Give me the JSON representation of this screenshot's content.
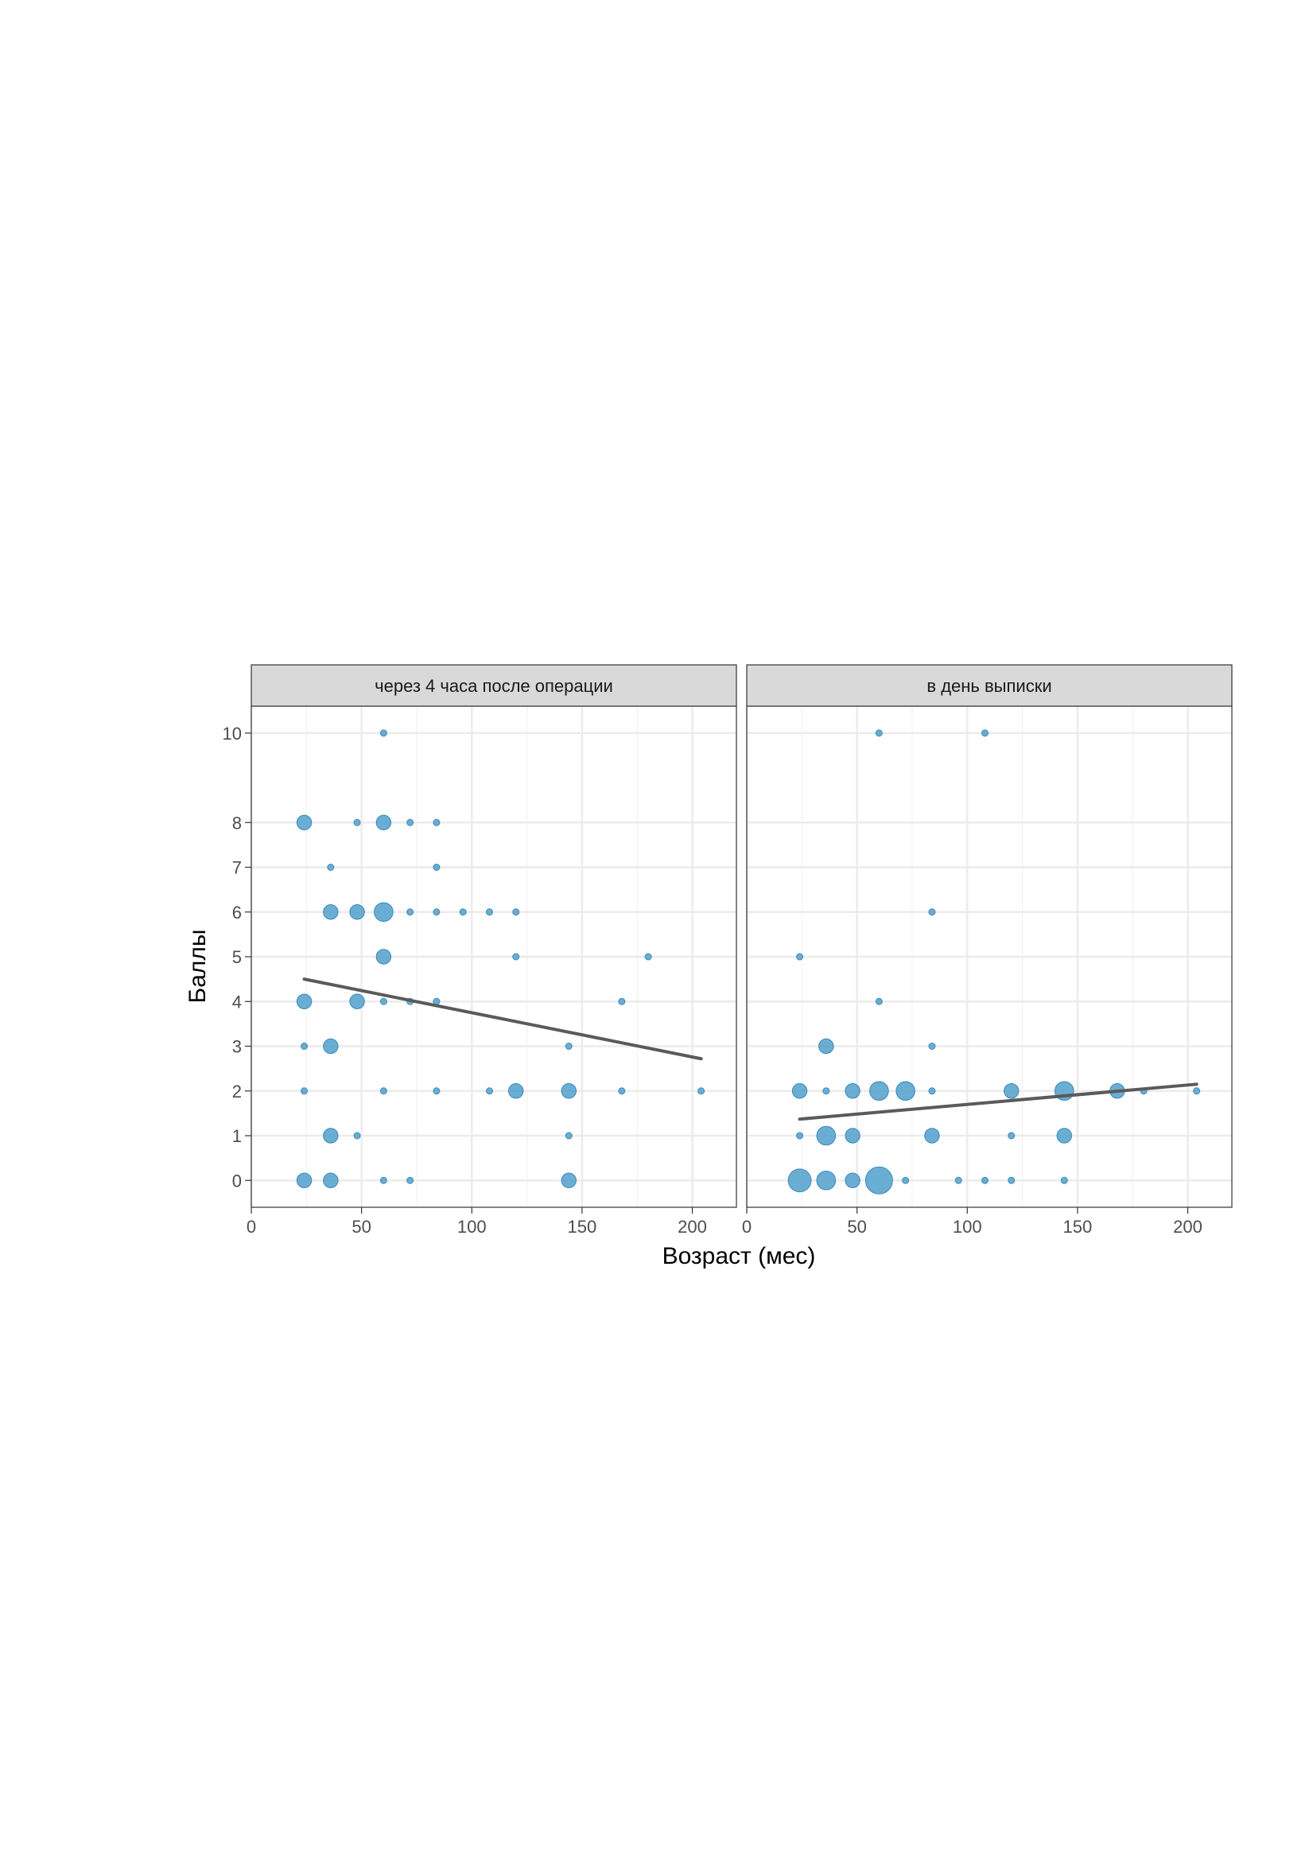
{
  "chart_data": {
    "type": "scatter",
    "xlabel": "Возраст (мес)",
    "ylabel": "Баллы",
    "xlim": [
      0,
      220
    ],
    "ylim": [
      -0.6,
      10.6
    ],
    "x_ticks": [
      0,
      50,
      100,
      150,
      200
    ],
    "y_ticks": [
      0,
      1,
      2,
      3,
      4,
      5,
      6,
      7,
      8,
      10
    ],
    "grid": true,
    "point_color": "#4a9ccb",
    "line_color": "#5a5a5a",
    "panels": [
      {
        "title": "через 4 часа после операции",
        "points": [
          {
            "x": 60,
            "y": 10,
            "n": 1
          },
          {
            "x": 24,
            "y": 8,
            "n": 3
          },
          {
            "x": 48,
            "y": 8,
            "n": 1
          },
          {
            "x": 60,
            "y": 8,
            "n": 3
          },
          {
            "x": 72,
            "y": 8,
            "n": 1
          },
          {
            "x": 84,
            "y": 8,
            "n": 1
          },
          {
            "x": 36,
            "y": 7,
            "n": 1
          },
          {
            "x": 84,
            "y": 7,
            "n": 1
          },
          {
            "x": 36,
            "y": 6,
            "n": 3
          },
          {
            "x": 48,
            "y": 6,
            "n": 3
          },
          {
            "x": 60,
            "y": 6,
            "n": 4
          },
          {
            "x": 72,
            "y": 6,
            "n": 1
          },
          {
            "x": 84,
            "y": 6,
            "n": 1
          },
          {
            "x": 96,
            "y": 6,
            "n": 1
          },
          {
            "x": 108,
            "y": 6,
            "n": 1
          },
          {
            "x": 120,
            "y": 6,
            "n": 1
          },
          {
            "x": 60,
            "y": 5,
            "n": 3
          },
          {
            "x": 120,
            "y": 5,
            "n": 1
          },
          {
            "x": 180,
            "y": 5,
            "n": 1
          },
          {
            "x": 24,
            "y": 4,
            "n": 3
          },
          {
            "x": 48,
            "y": 4,
            "n": 3
          },
          {
            "x": 60,
            "y": 4,
            "n": 1
          },
          {
            "x": 72,
            "y": 4,
            "n": 1
          },
          {
            "x": 84,
            "y": 4,
            "n": 1
          },
          {
            "x": 168,
            "y": 4,
            "n": 1
          },
          {
            "x": 24,
            "y": 3,
            "n": 1
          },
          {
            "x": 36,
            "y": 3,
            "n": 3
          },
          {
            "x": 144,
            "y": 3,
            "n": 1
          },
          {
            "x": 24,
            "y": 2,
            "n": 1
          },
          {
            "x": 60,
            "y": 2,
            "n": 1
          },
          {
            "x": 84,
            "y": 2,
            "n": 1
          },
          {
            "x": 108,
            "y": 2,
            "n": 1
          },
          {
            "x": 120,
            "y": 2,
            "n": 3
          },
          {
            "x": 144,
            "y": 2,
            "n": 3
          },
          {
            "x": 168,
            "y": 2,
            "n": 1
          },
          {
            "x": 204,
            "y": 2,
            "n": 1
          },
          {
            "x": 36,
            "y": 1,
            "n": 3
          },
          {
            "x": 48,
            "y": 1,
            "n": 1
          },
          {
            "x": 144,
            "y": 1,
            "n": 1
          },
          {
            "x": 24,
            "y": 0,
            "n": 3
          },
          {
            "x": 36,
            "y": 0,
            "n": 3
          },
          {
            "x": 60,
            "y": 0,
            "n": 1
          },
          {
            "x": 72,
            "y": 0,
            "n": 1
          },
          {
            "x": 144,
            "y": 0,
            "n": 3
          }
        ],
        "trend": {
          "x": [
            24,
            204
          ],
          "y": [
            4.5,
            2.72
          ]
        }
      },
      {
        "title": "в день выписки",
        "points": [
          {
            "x": 60,
            "y": 10,
            "n": 1
          },
          {
            "x": 108,
            "y": 10,
            "n": 1
          },
          {
            "x": 84,
            "y": 6,
            "n": 1
          },
          {
            "x": 24,
            "y": 5,
            "n": 1
          },
          {
            "x": 60,
            "y": 4,
            "n": 1
          },
          {
            "x": 36,
            "y": 3,
            "n": 3
          },
          {
            "x": 84,
            "y": 3,
            "n": 1
          },
          {
            "x": 24,
            "y": 2,
            "n": 3
          },
          {
            "x": 36,
            "y": 2,
            "n": 1
          },
          {
            "x": 48,
            "y": 2,
            "n": 3
          },
          {
            "x": 60,
            "y": 2,
            "n": 4
          },
          {
            "x": 72,
            "y": 2,
            "n": 4
          },
          {
            "x": 84,
            "y": 2,
            "n": 1
          },
          {
            "x": 120,
            "y": 2,
            "n": 3
          },
          {
            "x": 144,
            "y": 2,
            "n": 4
          },
          {
            "x": 168,
            "y": 2,
            "n": 3
          },
          {
            "x": 180,
            "y": 2,
            "n": 1
          },
          {
            "x": 204,
            "y": 2,
            "n": 1
          },
          {
            "x": 24,
            "y": 1,
            "n": 1
          },
          {
            "x": 36,
            "y": 1,
            "n": 4
          },
          {
            "x": 48,
            "y": 1,
            "n": 3
          },
          {
            "x": 84,
            "y": 1,
            "n": 3
          },
          {
            "x": 120,
            "y": 1,
            "n": 1
          },
          {
            "x": 144,
            "y": 1,
            "n": 3
          },
          {
            "x": 24,
            "y": 0,
            "n": 5
          },
          {
            "x": 36,
            "y": 0,
            "n": 4
          },
          {
            "x": 48,
            "y": 0,
            "n": 3
          },
          {
            "x": 60,
            "y": 0,
            "n": 6
          },
          {
            "x": 72,
            "y": 0,
            "n": 1
          },
          {
            "x": 96,
            "y": 0,
            "n": 1
          },
          {
            "x": 108,
            "y": 0,
            "n": 1
          },
          {
            "x": 120,
            "y": 0,
            "n": 1
          },
          {
            "x": 144,
            "y": 0,
            "n": 1
          }
        ],
        "trend": {
          "x": [
            24,
            204
          ],
          "y": [
            1.37,
            2.15
          ]
        }
      }
    ]
  }
}
